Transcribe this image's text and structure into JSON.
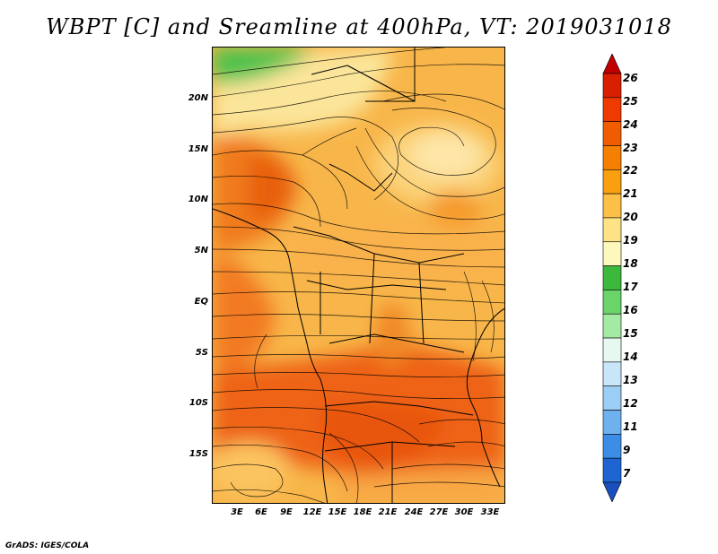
{
  "title": "WBPT [C] and Sreamline at 400hPa, VT: 2019031018",
  "footer": "GrADS: IGES/COLA",
  "map": {
    "lat_labels": [
      "20N",
      "15N",
      "10N",
      "5N",
      "EQ",
      "5S",
      "10S",
      "15S"
    ],
    "lon_labels": [
      "3E",
      "6E",
      "9E",
      "12E",
      "15E",
      "18E",
      "21E",
      "24E",
      "27E",
      "30E",
      "33E"
    ]
  },
  "colorbar": {
    "labels": [
      "26",
      "25",
      "24",
      "23",
      "22",
      "21",
      "20",
      "19",
      "18",
      "17",
      "16",
      "15",
      "14",
      "13",
      "12",
      "11",
      "9",
      "7"
    ],
    "colors": [
      "#c00000",
      "#d81f00",
      "#ee3a00",
      "#f25c00",
      "#f57f00",
      "#f99f10",
      "#fbc045",
      "#fde286",
      "#fdf8bc",
      "#3cb83c",
      "#6ad36a",
      "#a4eaa4",
      "#e6f8f0",
      "#c8e6f8",
      "#9ccdf4",
      "#6fb0ef",
      "#3c8de6",
      "#1e64d2",
      "#1a4fc0"
    ]
  }
}
